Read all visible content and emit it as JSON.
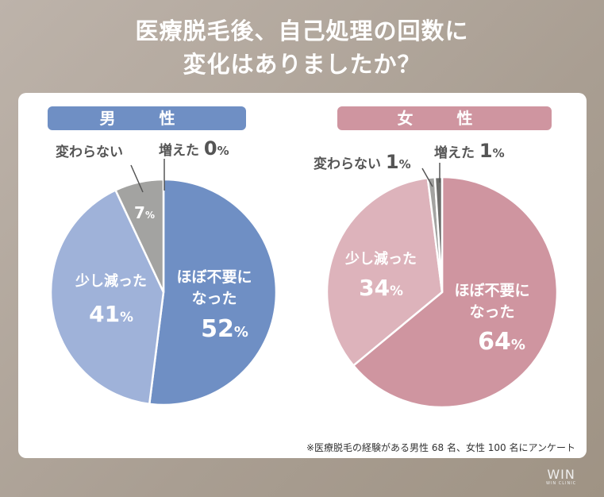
{
  "title_line1": "医療脱毛後、自己処理の回数に",
  "title_line2": "変化はありましたか？",
  "note": "※医療脱毛の経験がある男性 68 名、女性 100 名にアンケート",
  "logo": {
    "big": "WIN",
    "small": "WIN CLINIC"
  },
  "chart_data": [
    {
      "type": "pie",
      "title": "男 性",
      "color": "#6f8fc4",
      "slices": [
        {
          "label": "ほぼ不要になった",
          "value": 52,
          "color": "#6f8fc4"
        },
        {
          "label": "少し減った",
          "value": 41,
          "color": "#9fb2d9"
        },
        {
          "label": "変わらない",
          "value": 7,
          "color": "#a3a3a1"
        },
        {
          "label": "増えた",
          "value": 0,
          "color": "#7a7a78"
        }
      ]
    },
    {
      "type": "pie",
      "title": "女 性",
      "color": "#cf95a0",
      "slices": [
        {
          "label": "ほぼ不要になった",
          "value": 64,
          "color": "#cf95a0"
        },
        {
          "label": "少し減った",
          "value": 34,
          "color": "#ddb3bb"
        },
        {
          "label": "変わらない",
          "value": 1,
          "color": "#a3a3a1"
        },
        {
          "label": "増えた",
          "value": 1,
          "color": "#6e6e6c"
        }
      ]
    }
  ]
}
